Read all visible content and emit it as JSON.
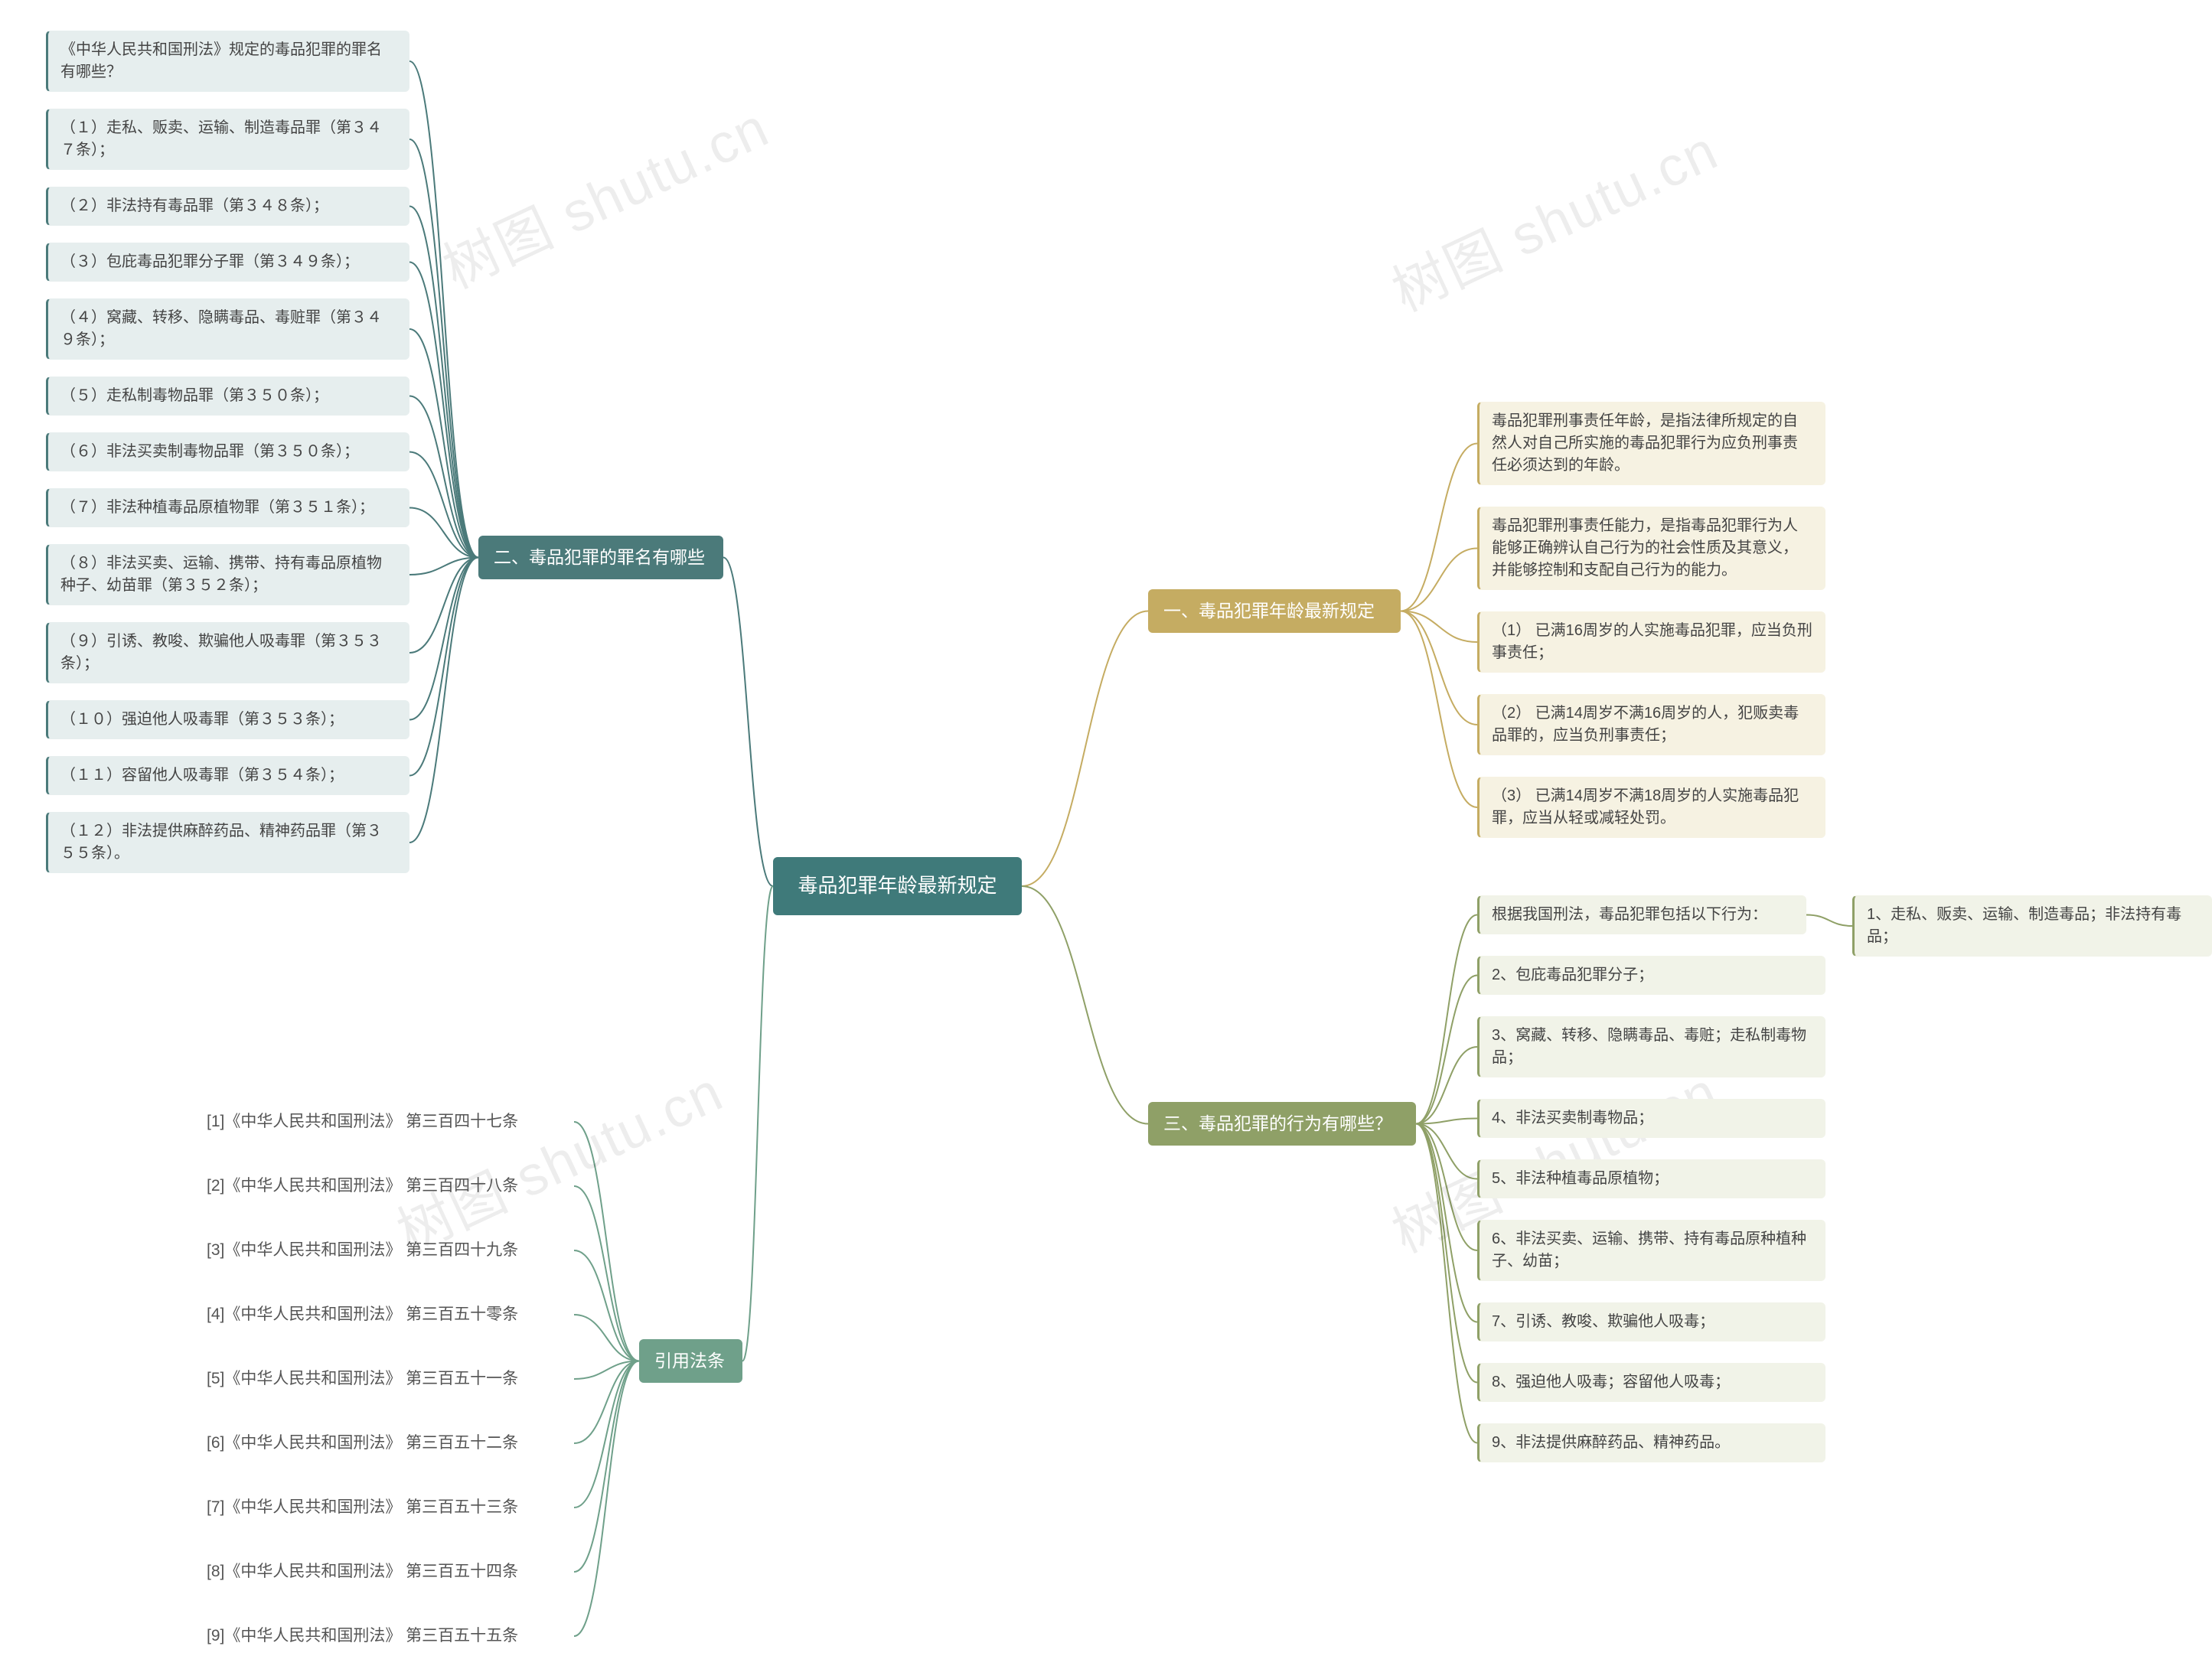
{
  "watermark_text": "树图 shutu.cn",
  "colors": {
    "root_bg": "#3f7a7a",
    "root_text": "#ffffff",
    "sec1_bg": "#c5ac62",
    "sec1_edge": "#c5ac62",
    "sec1_leaf_border": "#c5ac62",
    "sec1_leaf_bg": "#f6f2e2",
    "sec2_bg": "#4b7a7a",
    "sec2_edge": "#4b7a7a",
    "sec2_leaf_border": "#4b7a7a",
    "sec2_leaf_bg": "#e6eeee",
    "sec3_bg": "#8fa067",
    "sec3_edge": "#8fa067",
    "sec3_leaf_border": "#8fa067",
    "sec3_leaf_bg": "#f1f3e8",
    "law_bg": "#6fa08a",
    "law_edge": "#6fa08a",
    "law_text": "#555555",
    "background": "#ffffff"
  },
  "style": {
    "root_fontsize": 26,
    "main_fontsize": 23,
    "sub_fontsize": 20,
    "law_fontsize": 21,
    "border_radius": 6,
    "line_width": 2
  },
  "root": {
    "label": "毒品犯罪年龄最新规定"
  },
  "section1": {
    "label": "一、毒品犯罪年龄最新规定",
    "children": [
      "毒品犯罪刑事责任年龄，是指法律所规定的自然人对自己所实施的毒品犯罪行为应负刑事责任必须达到的年龄。",
      "毒品犯罪刑事责任能力，是指毒品犯罪行为人能够正确辨认自己行为的社会性质及其意义，并能够控制和支配自己行为的能力。",
      "（1） 已满16周岁的人实施毒品犯罪，应当负刑事责任；",
      "（2） 已满14周岁不满16周岁的人，犯贩卖毒品罪的，应当负刑事责任；",
      "（3） 已满14周岁不满18周岁的人实施毒品犯罪，应当从轻或减轻处罚。"
    ]
  },
  "section2": {
    "label": "二、毒品犯罪的罪名有哪些",
    "children": [
      "《中华人民共和国刑法》规定的毒品犯罪的罪名有哪些？",
      "（１）走私、贩卖、运输、制造毒品罪（第３４７条）；",
      "（２）非法持有毒品罪（第３４８条）；",
      "（３）包庇毒品犯罪分子罪（第３４９条）；",
      "（４）窝藏、转移、隐瞒毒品、毒赃罪（第３４９条）；",
      "（５）走私制毒物品罪（第３５０条）；",
      "（６）非法买卖制毒物品罪（第３５０条）；",
      "（７）非法种植毒品原植物罪（第３５１条）；",
      "（８）非法买卖、运输、携带、持有毒品原植物种子、幼苗罪（第３５２条）；",
      "（９）引诱、教唆、欺骗他人吸毒罪（第３５３条）；",
      "（１０）强迫他人吸毒罪（第３５３条）；",
      "（１１）容留他人吸毒罪（第３５４条）；",
      "（１２）非法提供麻醉药品、精神药品罪（第３５５条）。"
    ]
  },
  "section3": {
    "label": "三、毒品犯罪的行为有哪些？",
    "children": [
      "根据我国刑法，毒品犯罪包括以下行为：",
      "2、包庇毒品犯罪分子；",
      "3、窝藏、转移、隐瞒毒品、毒赃；走私制毒物品；",
      "4、非法买卖制毒物品；",
      "5、非法种植毒品原植物；",
      "6、非法买卖、运输、携带、持有毒品原种植种子、幼苗；",
      "7、引诱、教唆、欺骗他人吸毒；",
      "8、强迫他人吸毒；容留他人吸毒；",
      "9、非法提供麻醉药品、精神药品。"
    ],
    "extra": "1、走私、贩卖、运输、制造毒品；非法持有毒品；"
  },
  "laws": {
    "label": "引用法条",
    "children": [
      "[1]《中华人民共和国刑法》 第三百四十七条",
      "[2]《中华人民共和国刑法》 第三百四十八条",
      "[3]《中华人民共和国刑法》 第三百四十九条",
      "[4]《中华人民共和国刑法》 第三百五十零条",
      "[5]《中华人民共和国刑法》 第三百五十一条",
      "[6]《中华人民共和国刑法》 第三百五十二条",
      "[7]《中华人民共和国刑法》 第三百五十三条",
      "[8]《中华人民共和国刑法》 第三百五十四条",
      "[9]《中华人民共和国刑法》 第三百五十五条"
    ]
  }
}
